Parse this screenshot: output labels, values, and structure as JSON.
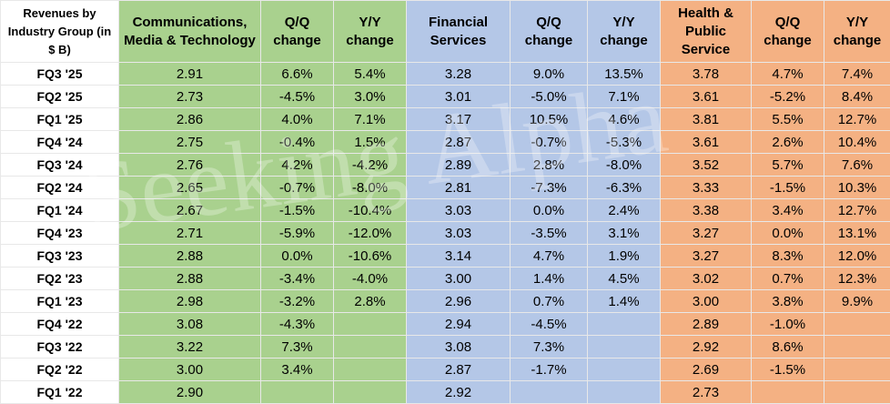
{
  "table": {
    "header": [
      "Revenues by Industry Group (in $ B)",
      "Communications, Media & Technology",
      "Q/Q change",
      "Y/Y change",
      "Financial Services",
      "Q/Q change",
      "Y/Y change",
      "Health & Public Service",
      "Q/Q change",
      "Y/Y change"
    ],
    "rows": [
      [
        "FQ3 '25",
        "2.91",
        "6.6%",
        "5.4%",
        "3.28",
        "9.0%",
        "13.5%",
        "3.78",
        "4.7%",
        "7.4%"
      ],
      [
        "FQ2 '25",
        "2.73",
        "-4.5%",
        "3.0%",
        "3.01",
        "-5.0%",
        "7.1%",
        "3.61",
        "-5.2%",
        "8.4%"
      ],
      [
        "FQ1 '25",
        "2.86",
        "4.0%",
        "7.1%",
        "3.17",
        "10.5%",
        "4.6%",
        "3.81",
        "5.5%",
        "12.7%"
      ],
      [
        "FQ4 '24",
        "2.75",
        "-0.4%",
        "1.5%",
        "2.87",
        "-0.7%",
        "-5.3%",
        "3.61",
        "2.6%",
        "10.4%"
      ],
      [
        "FQ3 '24",
        "2.76",
        "4.2%",
        "-4.2%",
        "2.89",
        "2.8%",
        "-8.0%",
        "3.52",
        "5.7%",
        "7.6%"
      ],
      [
        "FQ2 '24",
        "2.65",
        "-0.7%",
        "-8.0%",
        "2.81",
        "-7.3%",
        "-6.3%",
        "3.33",
        "-1.5%",
        "10.3%"
      ],
      [
        "FQ1 '24",
        "2.67",
        "-1.5%",
        "-10.4%",
        "3.03",
        "0.0%",
        "2.4%",
        "3.38",
        "3.4%",
        "12.7%"
      ],
      [
        "FQ4 '23",
        "2.71",
        "-5.9%",
        "-12.0%",
        "3.03",
        "-3.5%",
        "3.1%",
        "3.27",
        "0.0%",
        "13.1%"
      ],
      [
        "FQ3 '23",
        "2.88",
        "0.0%",
        "-10.6%",
        "3.14",
        "4.7%",
        "1.9%",
        "3.27",
        "8.3%",
        "12.0%"
      ],
      [
        "FQ2 '23",
        "2.88",
        "-3.4%",
        "-4.0%",
        "3.00",
        "1.4%",
        "4.5%",
        "3.02",
        "0.7%",
        "12.3%"
      ],
      [
        "FQ1 '23",
        "2.98",
        "-3.2%",
        "2.8%",
        "2.96",
        "0.7%",
        "1.4%",
        "3.00",
        "3.8%",
        "9.9%"
      ],
      [
        "FQ4 '22",
        "3.08",
        "-4.3%",
        null,
        "2.94",
        "-4.5%",
        null,
        "2.89",
        "-1.0%",
        null
      ],
      [
        "FQ3 '22",
        "3.22",
        "7.3%",
        null,
        "3.08",
        "7.3%",
        null,
        "2.92",
        "8.6%",
        null
      ],
      [
        "FQ2 '22",
        "3.00",
        "3.4%",
        null,
        "2.87",
        "-1.7%",
        null,
        "2.69",
        "-1.5%",
        null
      ],
      [
        "FQ1 '22",
        "2.90",
        null,
        null,
        "2.92",
        null,
        null,
        "2.73",
        null,
        null
      ]
    ]
  },
  "watermark": "Seeking Alpha"
}
